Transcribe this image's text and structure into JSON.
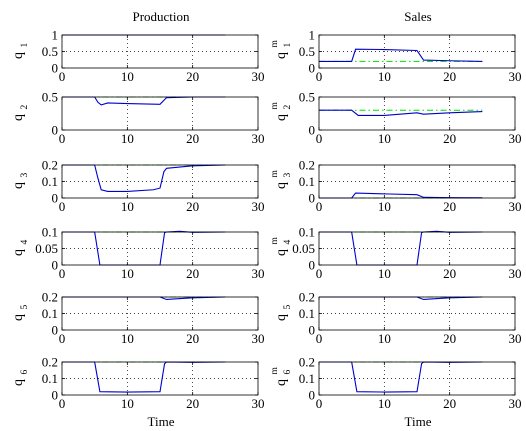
{
  "titles": {
    "left": "Production",
    "right": "Sales"
  },
  "xlabel": "Time",
  "chart_data": [
    {
      "type": "line",
      "id": "q1",
      "ylabel": {
        "base": "q",
        "sub": "1",
        "sup": ""
      },
      "xlim": [
        0,
        30
      ],
      "ylim": [
        0,
        1
      ],
      "xticks": [
        "0",
        "10",
        "20",
        "30"
      ],
      "yticks": [
        {
          "v": 0,
          "t": "0"
        },
        {
          "v": 0.5,
          "t": "0.5"
        },
        {
          "v": 1,
          "t": "1"
        }
      ],
      "series": [
        {
          "color": "#0000cc",
          "x": [
            0,
            25
          ],
          "y": [
            1,
            1
          ]
        },
        {
          "color": "#00dd00",
          "x": [
            0,
            25
          ],
          "y": [
            1,
            1
          ]
        }
      ]
    },
    {
      "type": "line",
      "id": "q1m",
      "ylabel": {
        "base": "q",
        "sub": "1",
        "sup": "m"
      },
      "xlim": [
        0,
        30
      ],
      "ylim": [
        0,
        1
      ],
      "xticks": [
        "0",
        "10",
        "20",
        "30"
      ],
      "yticks": [
        {
          "v": 0,
          "t": "0"
        },
        {
          "v": 0.5,
          "t": "0.5"
        },
        {
          "v": 1,
          "t": "1"
        }
      ],
      "series": [
        {
          "color": "#0000cc",
          "x": [
            0,
            5,
            5.6,
            10,
            15,
            16,
            20,
            25
          ],
          "y": [
            0.2,
            0.2,
            0.57,
            0.56,
            0.53,
            0.24,
            0.22,
            0.2
          ]
        },
        {
          "color": "#00dd00",
          "x": [
            0,
            25
          ],
          "y": [
            0.2,
            0.2
          ]
        }
      ]
    },
    {
      "type": "line",
      "id": "q2",
      "ylabel": {
        "base": "q",
        "sub": "2",
        "sup": ""
      },
      "xlim": [
        0,
        30
      ],
      "ylim": [
        0,
        0.5
      ],
      "xticks": [
        "0",
        "10",
        "20",
        "30"
      ],
      "yticks": [
        {
          "v": 0,
          "t": "0"
        },
        {
          "v": 0.5,
          "t": "0.5"
        }
      ],
      "series": [
        {
          "color": "#0000cc",
          "x": [
            0,
            5,
            5.5,
            6,
            7,
            10,
            15,
            16,
            20,
            25
          ],
          "y": [
            0.5,
            0.5,
            0.42,
            0.38,
            0.41,
            0.4,
            0.39,
            0.49,
            0.5,
            0.5
          ]
        },
        {
          "color": "#00dd00",
          "x": [
            0,
            25
          ],
          "y": [
            0.5,
            0.5
          ]
        }
      ]
    },
    {
      "type": "line",
      "id": "q2m",
      "ylabel": {
        "base": "q",
        "sub": "2",
        "sup": "m"
      },
      "xlim": [
        0,
        30
      ],
      "ylim": [
        0,
        0.5
      ],
      "xticks": [
        "0",
        "10",
        "20",
        "30"
      ],
      "yticks": [
        {
          "v": 0,
          "t": "0"
        },
        {
          "v": 0.5,
          "t": "0.5"
        }
      ],
      "series": [
        {
          "color": "#0000cc",
          "x": [
            0,
            5,
            6,
            10,
            15,
            16,
            20,
            25
          ],
          "y": [
            0.3,
            0.3,
            0.22,
            0.22,
            0.26,
            0.24,
            0.26,
            0.28
          ]
        },
        {
          "color": "#00dd00",
          "x": [
            0,
            25
          ],
          "y": [
            0.3,
            0.3
          ]
        }
      ]
    },
    {
      "type": "line",
      "id": "q3",
      "ylabel": {
        "base": "q",
        "sub": "3",
        "sup": ""
      },
      "xlim": [
        0,
        30
      ],
      "ylim": [
        0,
        0.2
      ],
      "xticks": [
        "0",
        "10",
        "20",
        "30"
      ],
      "yticks": [
        {
          "v": 0,
          "t": "0"
        },
        {
          "v": 0.1,
          "t": "0.1"
        },
        {
          "v": 0.2,
          "t": "0.2"
        }
      ],
      "series": [
        {
          "color": "#0000cc",
          "x": [
            0,
            5,
            5.5,
            6,
            7,
            10,
            14,
            15,
            15.6,
            16,
            20,
            25
          ],
          "y": [
            0.2,
            0.2,
            0.12,
            0.05,
            0.04,
            0.04,
            0.05,
            0.06,
            0.16,
            0.18,
            0.195,
            0.2
          ]
        },
        {
          "color": "#00dd00",
          "x": [
            0,
            25
          ],
          "y": [
            0.2,
            0.2
          ]
        }
      ]
    },
    {
      "type": "line",
      "id": "q3m",
      "ylabel": {
        "base": "q",
        "sub": "3",
        "sup": "m"
      },
      "xlim": [
        0,
        30
      ],
      "ylim": [
        0,
        0.2
      ],
      "xticks": [
        "0",
        "10",
        "20",
        "30"
      ],
      "yticks": [
        {
          "v": 0,
          "t": "0"
        },
        {
          "v": 0.1,
          "t": "0.1"
        },
        {
          "v": 0.2,
          "t": "0.2"
        }
      ],
      "series": [
        {
          "color": "#0000cc",
          "x": [
            0,
            5,
            5.6,
            10,
            15,
            16,
            20,
            25
          ],
          "y": [
            0,
            0,
            0.03,
            0.025,
            0.02,
            0.004,
            0.002,
            0.001
          ]
        },
        {
          "color": "#00dd00",
          "x": [
            0,
            25
          ],
          "y": [
            0,
            0
          ]
        }
      ]
    },
    {
      "type": "line",
      "id": "q4",
      "ylabel": {
        "base": "q",
        "sub": "4",
        "sup": ""
      },
      "xlim": [
        0,
        30
      ],
      "ylim": [
        0,
        0.1
      ],
      "xticks": [
        "0",
        "10",
        "20",
        "30"
      ],
      "yticks": [
        {
          "v": 0,
          "t": "0"
        },
        {
          "v": 0.05,
          "t": "0.05"
        },
        {
          "v": 0.1,
          "t": "0.1"
        }
      ],
      "series": [
        {
          "color": "#0000cc",
          "x": [
            0,
            5,
            5.8,
            15,
            15.7,
            16,
            18,
            20,
            25
          ],
          "y": [
            0.1,
            0.1,
            0,
            0,
            0.098,
            0.1,
            0.102,
            0.099,
            0.1
          ]
        },
        {
          "color": "#00dd00",
          "x": [
            0,
            25
          ],
          "y": [
            0.1,
            0.1
          ]
        }
      ]
    },
    {
      "type": "line",
      "id": "q4m",
      "ylabel": {
        "base": "q",
        "sub": "4",
        "sup": "m"
      },
      "xlim": [
        0,
        30
      ],
      "ylim": [
        0,
        0.1
      ],
      "xticks": [
        "0",
        "10",
        "20",
        "30"
      ],
      "yticks": [
        {
          "v": 0,
          "t": "0"
        },
        {
          "v": 0.05,
          "t": "0.05"
        },
        {
          "v": 0.1,
          "t": "0.1"
        }
      ],
      "series": [
        {
          "color": "#0000cc",
          "x": [
            0,
            5,
            5.8,
            15,
            15.7,
            16,
            18,
            20,
            25
          ],
          "y": [
            0.1,
            0.1,
            0,
            0,
            0.098,
            0.1,
            0.102,
            0.099,
            0.1
          ]
        },
        {
          "color": "#00dd00",
          "x": [
            0,
            25
          ],
          "y": [
            0.1,
            0.1
          ]
        }
      ]
    },
    {
      "type": "line",
      "id": "q5",
      "ylabel": {
        "base": "q",
        "sub": "5",
        "sup": ""
      },
      "xlim": [
        0,
        30
      ],
      "ylim": [
        0,
        0.2
      ],
      "xticks": [
        "0",
        "10",
        "20",
        "30"
      ],
      "yticks": [
        {
          "v": 0,
          "t": "0"
        },
        {
          "v": 0.1,
          "t": "0.1"
        },
        {
          "v": 0.2,
          "t": "0.2"
        }
      ],
      "series": [
        {
          "color": "#0000cc",
          "x": [
            0,
            15,
            16,
            20,
            25
          ],
          "y": [
            0.2,
            0.2,
            0.185,
            0.195,
            0.2
          ]
        },
        {
          "color": "#00dd00",
          "x": [
            0,
            25
          ],
          "y": [
            0.2,
            0.2
          ]
        }
      ]
    },
    {
      "type": "line",
      "id": "q5m",
      "ylabel": {
        "base": "q",
        "sub": "5",
        "sup": ""
      },
      "xlim": [
        0,
        30
      ],
      "ylim": [
        0,
        0.2
      ],
      "xticks": [
        "0",
        "10",
        "20",
        "30"
      ],
      "yticks": [
        {
          "v": 0,
          "t": "0"
        },
        {
          "v": 0.1,
          "t": "0.1"
        },
        {
          "v": 0.2,
          "t": "0.2"
        }
      ],
      "series": [
        {
          "color": "#0000cc",
          "x": [
            0,
            15,
            16,
            20,
            25
          ],
          "y": [
            0.2,
            0.2,
            0.185,
            0.195,
            0.2
          ]
        },
        {
          "color": "#00dd00",
          "x": [
            0,
            25
          ],
          "y": [
            0.2,
            0.2
          ]
        }
      ]
    },
    {
      "type": "line",
      "id": "q6",
      "ylabel": {
        "base": "q",
        "sub": "6",
        "sup": ""
      },
      "xlim": [
        0,
        30
      ],
      "ylim": [
        0,
        0.2
      ],
      "xticks": [
        "0",
        "10",
        "20",
        "30"
      ],
      "yticks": [
        {
          "v": 0,
          "t": "0"
        },
        {
          "v": 0.1,
          "t": "0.1"
        },
        {
          "v": 0.2,
          "t": "0.2"
        }
      ],
      "series": [
        {
          "color": "#0000cc",
          "x": [
            0,
            5,
            5.8,
            10,
            15,
            15.7,
            16,
            20,
            25
          ],
          "y": [
            0.2,
            0.2,
            0.02,
            0.018,
            0.02,
            0.19,
            0.2,
            0.198,
            0.2
          ]
        },
        {
          "color": "#00dd00",
          "x": [
            0,
            25
          ],
          "y": [
            0.2,
            0.2
          ]
        }
      ]
    },
    {
      "type": "line",
      "id": "q6m",
      "ylabel": {
        "base": "q",
        "sub": "6",
        "sup": "m"
      },
      "xlim": [
        0,
        30
      ],
      "ylim": [
        0,
        0.2
      ],
      "xticks": [
        "0",
        "10",
        "20",
        "30"
      ],
      "yticks": [
        {
          "v": 0,
          "t": "0"
        },
        {
          "v": 0.1,
          "t": "0.1"
        },
        {
          "v": 0.2,
          "t": "0.2"
        }
      ],
      "series": [
        {
          "color": "#0000cc",
          "x": [
            0,
            5,
            5.8,
            10,
            15,
            15.7,
            16,
            20,
            25
          ],
          "y": [
            0.2,
            0.2,
            0.02,
            0.018,
            0.02,
            0.19,
            0.2,
            0.198,
            0.2
          ]
        },
        {
          "color": "#00dd00",
          "x": [
            0,
            25
          ],
          "y": [
            0.2,
            0.2
          ]
        }
      ]
    }
  ]
}
